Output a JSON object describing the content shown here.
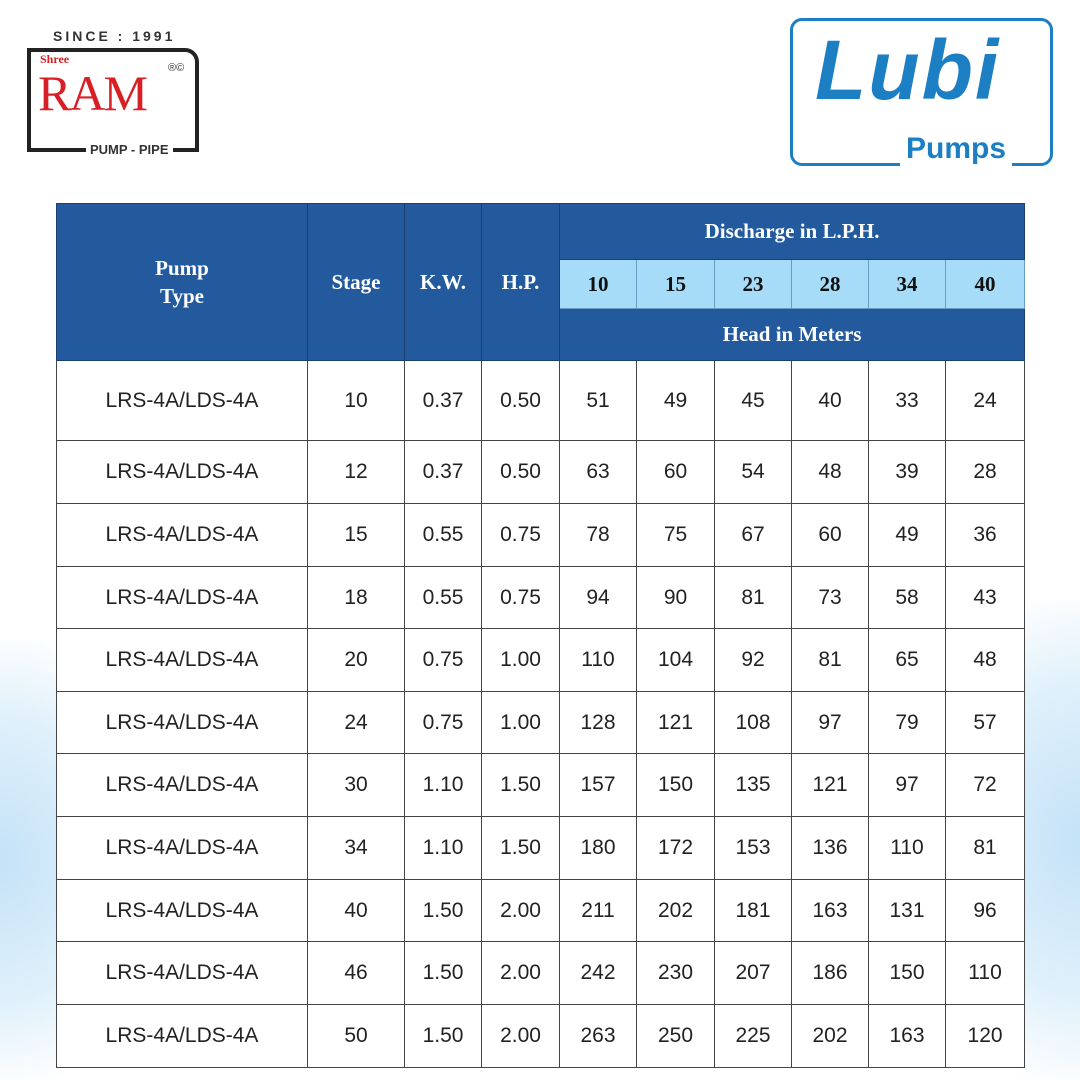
{
  "logos": {
    "ram": {
      "since": "SINCE : 1991",
      "shree": "Shree",
      "name": "RAM",
      "reg": "®©",
      "tagline": "PUMP - PIPE"
    },
    "lubi": {
      "name": "Lubi",
      "tagline": "Pumps",
      "brand_color": "#1c7fc4"
    }
  },
  "colors": {
    "header": "#235a9e",
    "subheader": "#a6dcf7"
  },
  "table": {
    "headers": {
      "pump_type": "Pump Type",
      "stage": "Stage",
      "kw": "K.W.",
      "hp": "H.P.",
      "discharge": "Discharge in L.P.H.",
      "head": "Head in Meters"
    },
    "discharge_values": [
      "10",
      "15",
      "23",
      "28",
      "34",
      "40"
    ],
    "rows": [
      [
        "LRS-4A/LDS-4A",
        "10",
        "0.37",
        "0.50",
        "51",
        "49",
        "45",
        "40",
        "33",
        "24"
      ],
      [
        "LRS-4A/LDS-4A",
        "12",
        "0.37",
        "0.50",
        "63",
        "60",
        "54",
        "48",
        "39",
        "28"
      ],
      [
        "LRS-4A/LDS-4A",
        "15",
        "0.55",
        "0.75",
        "78",
        "75",
        "67",
        "60",
        "49",
        "36"
      ],
      [
        "LRS-4A/LDS-4A",
        "18",
        "0.55",
        "0.75",
        "94",
        "90",
        "81",
        "73",
        "58",
        "43"
      ],
      [
        "LRS-4A/LDS-4A",
        "20",
        "0.75",
        "1.00",
        "110",
        "104",
        "92",
        "81",
        "65",
        "48"
      ],
      [
        "LRS-4A/LDS-4A",
        "24",
        "0.75",
        "1.00",
        "128",
        "121",
        "108",
        "97",
        "79",
        "57"
      ],
      [
        "LRS-4A/LDS-4A",
        "30",
        "1.10",
        "1.50",
        "157",
        "150",
        "135",
        "121",
        "97",
        "72"
      ],
      [
        "LRS-4A/LDS-4A",
        "34",
        "1.10",
        "1.50",
        "180",
        "172",
        "153",
        "136",
        "110",
        "81"
      ],
      [
        "LRS-4A/LDS-4A",
        "40",
        "1.50",
        "2.00",
        "211",
        "202",
        "181",
        "163",
        "131",
        "96"
      ],
      [
        "LRS-4A/LDS-4A",
        "46",
        "1.50",
        "2.00",
        "242",
        "230",
        "207",
        "186",
        "150",
        "110"
      ],
      [
        "LRS-4A/LDS-4A",
        "50",
        "1.50",
        "2.00",
        "263",
        "250",
        "225",
        "202",
        "163",
        "120"
      ]
    ]
  }
}
